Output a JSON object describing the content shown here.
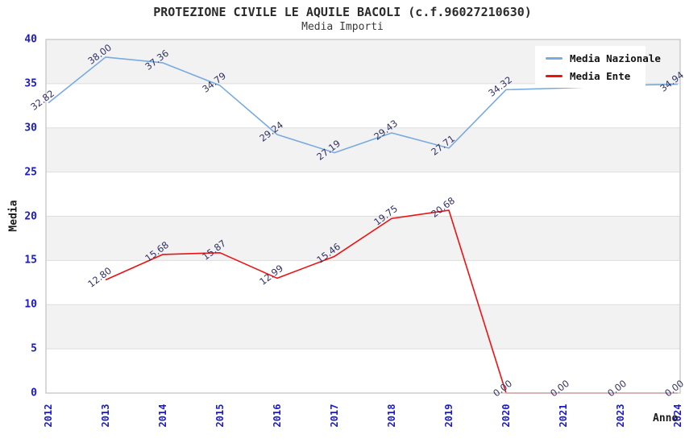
{
  "header": {
    "title": "PROTEZIONE CIVILE LE AQUILE BACOLI (c.f.96027210630)",
    "subtitle": "Media Importi"
  },
  "chart_data": {
    "type": "line",
    "title": "PROTEZIONE CIVILE LE AQUILE BACOLI (c.f.96027210630)",
    "subtitle": "Media Importi",
    "xlabel": "Anno",
    "ylabel": "Media",
    "categories": [
      "2012",
      "2013",
      "2014",
      "2015",
      "2016",
      "2017",
      "2018",
      "2019",
      "2020",
      "2021",
      "2023",
      "2024"
    ],
    "yticks": [
      0,
      5,
      10,
      15,
      20,
      25,
      30,
      35,
      40
    ],
    "ylim": [
      0,
      40
    ],
    "grid": "horizontal-bands-alternating",
    "legend_position": "top-right",
    "series": [
      {
        "name": "Media Nazionale",
        "color": "#79abdf",
        "values": [
          32.82,
          38.0,
          37.36,
          34.79,
          29.24,
          27.19,
          29.43,
          27.71,
          34.32,
          34.5,
          34.8,
          34.94
        ],
        "labels": [
          "32.82",
          "38.00",
          "37.36",
          "34.79",
          "29.24",
          "27.19",
          "29.43",
          "27.71",
          "34.32",
          "",
          "",
          "34.94"
        ],
        "note_hidden_labels": "values for 2021 and 2023 estimated from line position; their labels are hidden behind the legend"
      },
      {
        "name": "Media Ente",
        "color": "#ee1111",
        "values": [
          null,
          12.8,
          15.68,
          15.87,
          12.99,
          15.46,
          19.75,
          20.68,
          0.0,
          0.0,
          0.0,
          0.0
        ],
        "labels": [
          "",
          "12.80",
          "15.68",
          "15.87",
          "12.99",
          "15.46",
          "19.75",
          "20.68",
          "0.00",
          "0.00",
          "0.00",
          "0.00"
        ]
      }
    ]
  },
  "colors": {
    "band_gray": "#f2f2f2",
    "gridline": "#dddddd",
    "plot_border": "#c9c9c9",
    "tick_label_blue": "#1a1acc",
    "data_label_navy": "#333366",
    "series_blue": "#79abdf",
    "series_red": "#ee1111"
  }
}
